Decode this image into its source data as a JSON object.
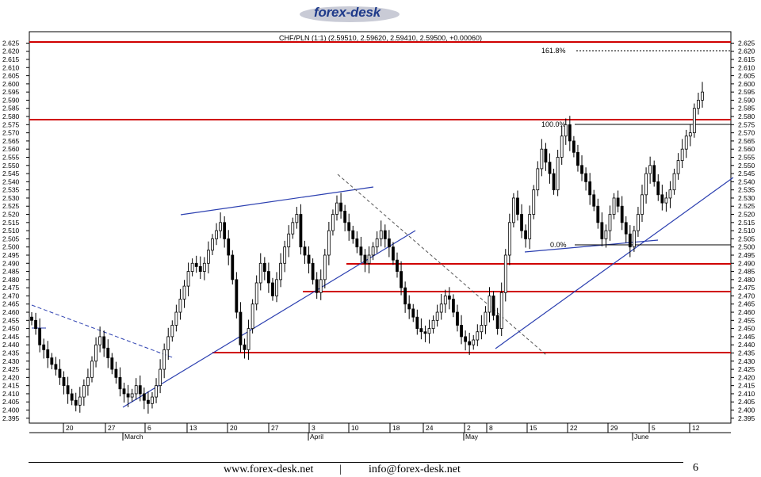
{
  "logo": {
    "text": "forex-desk"
  },
  "footer": {
    "url": "www.forex-desk.net",
    "separator": "|",
    "email": "info@forex-desk.net",
    "page": "6"
  },
  "chart_data": {
    "type": "candlestick",
    "title": "CHF/PLN (1:1) (2.59510, 2.59620, 2.59410, 2.59500, +0.00060)",
    "ylim": [
      2.392,
      2.632
    ],
    "y_ticks": [
      "2.625",
      "2.620",
      "2.615",
      "2.610",
      "2.605",
      "2.600",
      "2.595",
      "2.590",
      "2.585",
      "2.580",
      "2.575",
      "2.570",
      "2.565",
      "2.560",
      "2.555",
      "2.550",
      "2.545",
      "2.540",
      "2.535",
      "2.530",
      "2.525",
      "2.520",
      "2.515",
      "2.510",
      "2.505",
      "2.500",
      "2.495",
      "2.490",
      "2.485",
      "2.480",
      "2.475",
      "2.470",
      "2.465",
      "2.460",
      "2.455",
      "2.450",
      "2.445",
      "2.440",
      "2.435",
      "2.430",
      "2.425",
      "2.420",
      "2.415",
      "2.410",
      "2.405",
      "2.400",
      "2.395"
    ],
    "x_ticks": [
      "20",
      "27",
      "6",
      "13",
      "20",
      "27",
      "3",
      "10",
      "18",
      "24",
      "2",
      "8",
      "15",
      "22",
      "29",
      "5",
      "12"
    ],
    "months": [
      "March",
      "April",
      "May",
      "June"
    ],
    "series": [
      {
        "close": [
          2.455,
          2.45,
          2.44,
          2.437,
          2.432,
          2.428,
          2.425,
          2.42,
          2.415,
          2.41,
          2.406,
          2.403,
          2.408,
          2.415,
          2.42,
          2.43,
          2.44,
          2.445,
          2.438,
          2.432,
          2.425,
          2.42,
          2.413,
          2.41,
          2.408,
          2.41,
          2.415,
          2.41,
          2.406,
          2.404,
          2.408,
          2.415,
          2.425,
          2.437,
          2.445,
          2.452,
          2.46,
          2.468,
          2.476,
          2.485,
          2.49,
          2.488,
          2.485,
          2.49,
          2.498,
          2.505,
          2.51,
          2.515,
          2.505,
          2.495,
          2.48,
          2.46,
          2.44,
          2.437,
          2.45,
          2.465,
          2.478,
          2.49,
          2.485,
          2.478,
          2.47,
          2.48,
          2.49,
          2.5,
          2.508,
          2.515,
          2.52,
          2.5,
          2.495,
          2.49,
          2.48,
          2.472,
          2.48,
          2.495,
          2.51,
          2.52,
          2.527,
          2.522,
          2.515,
          2.51,
          2.505,
          2.5,
          2.495,
          2.49,
          2.495,
          2.5,
          2.505,
          2.51,
          2.505,
          2.5,
          2.492,
          2.485,
          2.475,
          2.465,
          2.462,
          2.457,
          2.45,
          2.448,
          2.447,
          2.45,
          2.455,
          2.46,
          2.465,
          2.47,
          2.468,
          2.46,
          2.452,
          2.445,
          2.442,
          2.44,
          2.443,
          2.448,
          2.452,
          2.46,
          2.47,
          2.458,
          2.45,
          2.472,
          2.495,
          2.515,
          2.53,
          2.52,
          2.51,
          2.505,
          2.52,
          2.535,
          2.548,
          2.56,
          2.552,
          2.545,
          2.535,
          2.555,
          2.568,
          2.575,
          2.565,
          2.558,
          2.55,
          2.545,
          2.54,
          2.532,
          2.525,
          2.515,
          2.505,
          2.51,
          2.52,
          2.53,
          2.525,
          2.515,
          2.508,
          2.5,
          2.51,
          2.52,
          2.532,
          2.545,
          2.55,
          2.54,
          2.532,
          2.527,
          2.53,
          2.535,
          2.545,
          2.553,
          2.56,
          2.568,
          2.57,
          2.585,
          2.59,
          2.595
        ]
      }
    ],
    "annotations": [
      "161.8%",
      "100.0%",
      "0.0%"
    ]
  }
}
